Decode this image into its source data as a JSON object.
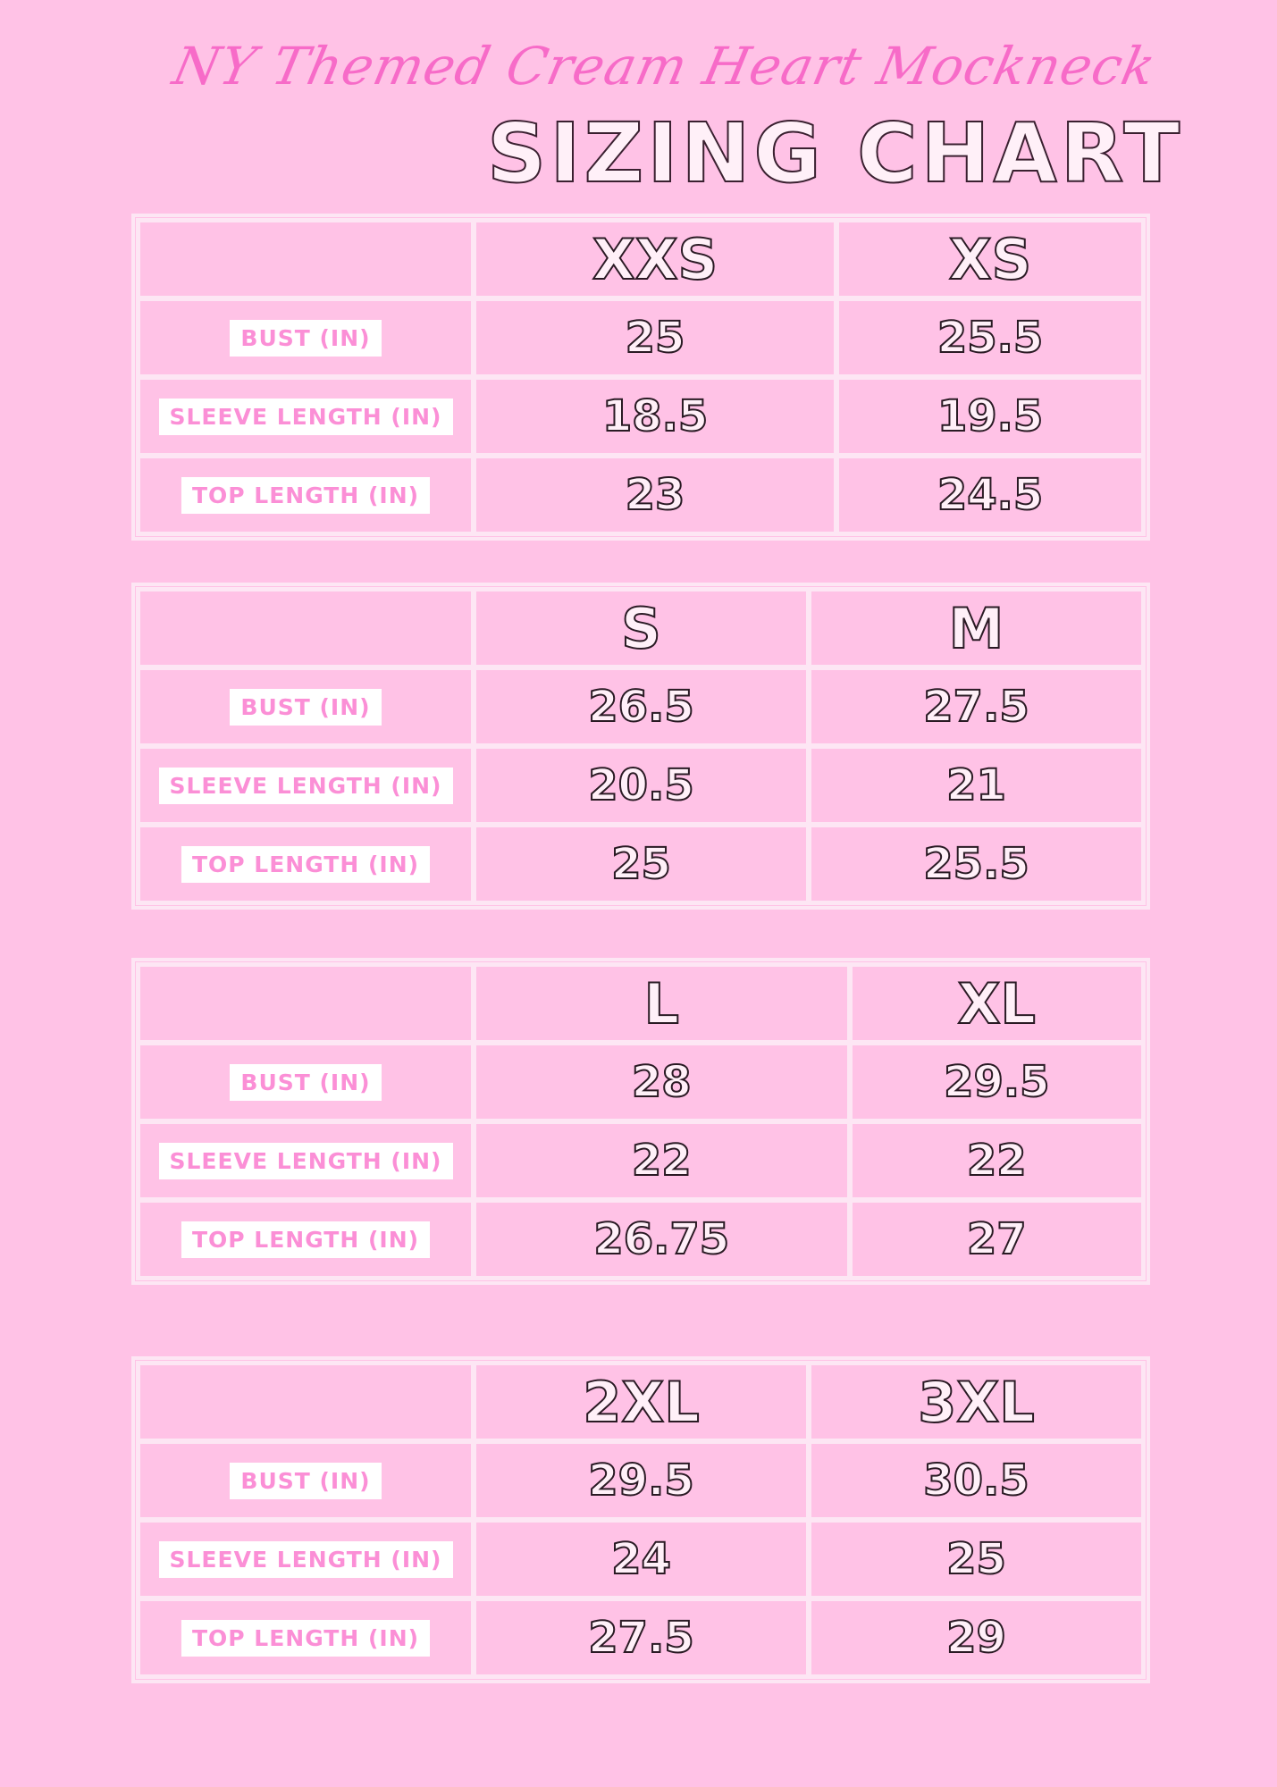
{
  "subtitle": "NY Themed Cream Heart Mockneck",
  "title": "SIZING CHART",
  "row_labels": [
    "BUST (IN)",
    "SLEEVE LENGTH (IN)",
    "TOP LENGTH (IN)"
  ],
  "tables": [
    {
      "sizes": [
        "XXS",
        "XS"
      ],
      "rows": [
        [
          "25",
          "25.5"
        ],
        [
          "18.5",
          "19.5"
        ],
        [
          "23",
          "24.5"
        ]
      ]
    },
    {
      "sizes": [
        "S",
        "M"
      ],
      "rows": [
        [
          "26.5",
          "27.5"
        ],
        [
          "20.5",
          "21"
        ],
        [
          "25",
          "25.5"
        ]
      ]
    },
    {
      "sizes": [
        "L",
        "XL"
      ],
      "rows": [
        [
          "28",
          "29.5"
        ],
        [
          "22",
          "22"
        ],
        [
          "26.75",
          "27"
        ]
      ]
    },
    {
      "sizes": [
        "2XL",
        "3XL"
      ],
      "rows": [
        [
          "29.5",
          "30.5"
        ],
        [
          "24",
          "25"
        ],
        [
          "27.5",
          "29"
        ]
      ]
    }
  ],
  "colors": {
    "background": "#ffc2e6",
    "grid": "#fde6f4",
    "label_text": "#fb8fd6",
    "script_text": "#f76bc8"
  }
}
